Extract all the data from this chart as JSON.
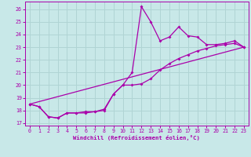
{
  "xlabel": "Windchill (Refroidissement éolien,°C)",
  "background_color": "#c8e8e8",
  "grid_color": "#b0d4d4",
  "line_color": "#aa00aa",
  "xlim": [
    -0.5,
    23.5
  ],
  "ylim": [
    16.8,
    26.6
  ],
  "yticks": [
    17,
    18,
    19,
    20,
    21,
    22,
    23,
    24,
    25,
    26
  ],
  "xticks": [
    0,
    1,
    2,
    3,
    4,
    5,
    6,
    7,
    8,
    9,
    10,
    11,
    12,
    13,
    14,
    15,
    16,
    17,
    18,
    19,
    20,
    21,
    22,
    23
  ],
  "series1_x": [
    0,
    1,
    2,
    3,
    4,
    5,
    6,
    7,
    8,
    9,
    10,
    11,
    12,
    13,
    14,
    15,
    16,
    17,
    18,
    19,
    20,
    21,
    22,
    23
  ],
  "series1_y": [
    18.5,
    18.3,
    17.5,
    17.4,
    17.8,
    17.8,
    17.8,
    17.9,
    18.0,
    19.3,
    20.0,
    21.0,
    26.2,
    25.0,
    23.5,
    23.8,
    24.6,
    23.9,
    23.8,
    23.2,
    23.2,
    23.3,
    23.5,
    23.0
  ],
  "series2_x": [
    0,
    1,
    2,
    3,
    4,
    5,
    6,
    7,
    8,
    9,
    10,
    11,
    12,
    13,
    14,
    15,
    16,
    17,
    18,
    19,
    20,
    21,
    22,
    23
  ],
  "series2_y": [
    18.5,
    18.3,
    17.5,
    17.4,
    17.8,
    17.8,
    17.9,
    17.9,
    18.1,
    19.3,
    20.0,
    20.0,
    20.1,
    20.5,
    21.2,
    21.7,
    22.1,
    22.4,
    22.7,
    22.9,
    23.1,
    23.2,
    23.3,
    23.0
  ],
  "series3_x": [
    0,
    23
  ],
  "series3_y": [
    18.5,
    23.0
  ]
}
